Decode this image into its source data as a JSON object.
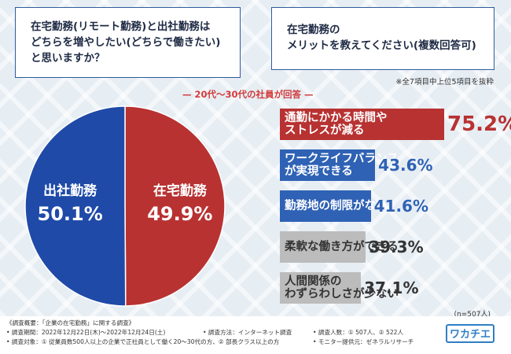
{
  "question_left": "在宅勤務(リモート勤務)と出社勤務は\nどちらを増やしたい(どちらで働きたい)\nと思いますか？",
  "question_right": "在宅勤務の\nメリットを教えてください(複数回答可)",
  "note": "※全7項目中上位5項目を抜粋",
  "subtitle": "— 20代〜30代の社員が回答 —",
  "n_label": "(n=507人)",
  "footer": {
    "line1a": "《調査概要：「企業の在宅勤務」に関する調査》",
    "line2a": "• 調査期間：2022年12月22日(木)〜2022年12月24日(土)",
    "line2b": "• 調査方法：インターネット調査",
    "line2c": "• 調査人数：① 507人、② 522人",
    "line3a": "• 調査対象：① 従業員数500人以上の企業で正社員として働く20〜30代の方、② 部長クラス以上の方",
    "line3b": "• モニター提供元：ゼネラルリサーチ",
    "logo": "ワカチエ"
  },
  "colors": {
    "red": "#b83232",
    "blue": "#1f4aa8",
    "gray": "#bcbcbc",
    "bar_blue": "#2f62b5"
  },
  "chart_data": [
    {
      "type": "pie",
      "title": "在宅勤務(リモート勤務)と出社勤務はどちらを増やしたい(どちらで働きたい)と思いますか？",
      "labels": [
        "在宅勤務",
        "出社勤務"
      ],
      "values": [
        49.9,
        50.1
      ],
      "display": [
        "49.9%",
        "50.1%"
      ]
    },
    {
      "type": "bar",
      "title": "在宅勤務のメリットを教えてください(複数回答可)",
      "categories": [
        "通勤にかかる時間や\nストレスが減る",
        "ワークライフバランス\nが実現できる",
        "勤務地の制限がない",
        "柔軟な働き方ができる",
        "人間関係の\nわずらわしさが少ない"
      ],
      "values": [
        75.2,
        43.6,
        41.6,
        39.3,
        37.1
      ],
      "display": [
        "75.2%",
        "43.6%",
        "41.6%",
        "39.3%",
        "37.1%"
      ]
    }
  ]
}
